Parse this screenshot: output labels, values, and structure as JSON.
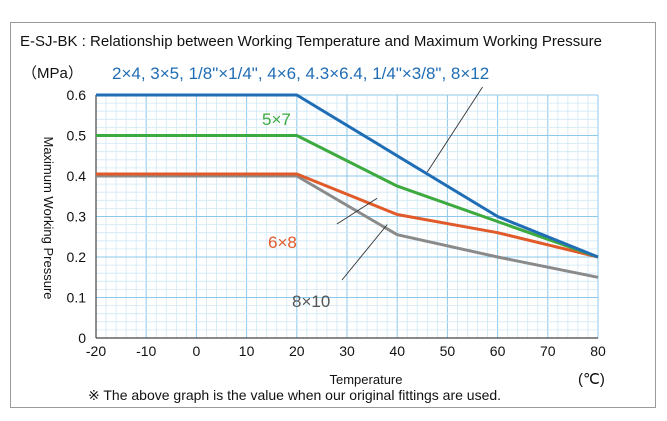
{
  "chart_data": {
    "type": "line",
    "title": "E-SJ-BK : Relationship between Working Temperature and Maximum Working Pressure",
    "xlabel": "Temperature",
    "x_unit": "(℃)",
    "ylabel": "Maximum Working Pressure",
    "y_unit": "（MPa）",
    "xlim": [
      -20,
      80
    ],
    "ylim": [
      0,
      0.6
    ],
    "x_ticks": [
      "-20",
      "-10",
      "0",
      "10",
      "20",
      "30",
      "40",
      "50",
      "60",
      "70",
      "80"
    ],
    "y_ticks": [
      "0",
      "0.1",
      "0.2",
      "0.3",
      "0.4",
      "0.5",
      "0.6"
    ],
    "grid": true,
    "series": [
      {
        "name": "2×4, 3×5, 1/8\"×1/4\", 4×6, 4.3×6.4, 1/4\"×3/8\", 8×12",
        "color": "#1f6db5",
        "points": [
          [
            -20,
            0.6
          ],
          [
            20,
            0.6
          ],
          [
            60,
            0.3
          ],
          [
            80,
            0.2
          ]
        ]
      },
      {
        "name": "5×7",
        "color": "#3daa3f",
        "points": [
          [
            -20,
            0.5
          ],
          [
            20,
            0.5
          ],
          [
            40,
            0.375
          ],
          [
            80,
            0.2
          ]
        ]
      },
      {
        "name": "6×8",
        "color": "#e05a2a",
        "points": [
          [
            -20,
            0.405
          ],
          [
            20,
            0.405
          ],
          [
            40,
            0.305
          ],
          [
            60,
            0.26
          ],
          [
            80,
            0.2
          ]
        ]
      },
      {
        "name": "8×10",
        "color": "#8a8a8a",
        "points": [
          [
            -20,
            0.4
          ],
          [
            20,
            0.4
          ],
          [
            40,
            0.255
          ],
          [
            60,
            0.2
          ],
          [
            80,
            0.15
          ]
        ]
      }
    ],
    "note": "※ The above graph is the value when our original fittings are used."
  }
}
